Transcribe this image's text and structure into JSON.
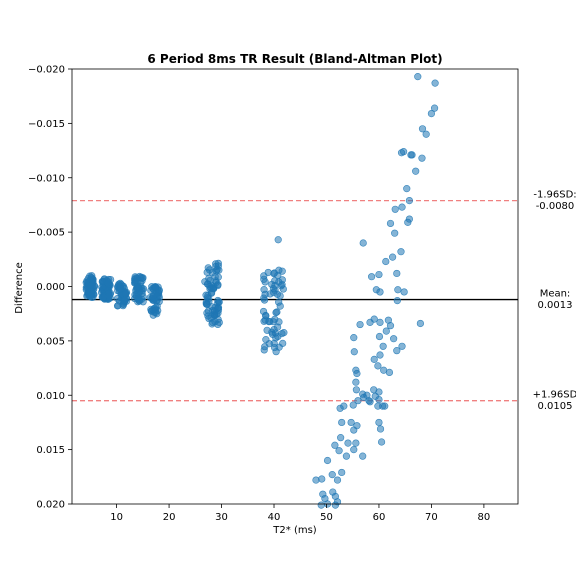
{
  "chart_data": {
    "type": "scatter",
    "title": "6 Period 8ms TR Result (Bland-Altman Plot)",
    "xlabel": "T2* (ms)",
    "ylabel": "Difference",
    "xlim": [
      1.5,
      86.5
    ],
    "ylim": [
      0.02,
      -0.02
    ],
    "y_axis_inverted": true,
    "xticks": [
      10,
      20,
      30,
      40,
      50,
      60,
      70,
      80
    ],
    "xtick_labels": [
      "10",
      "20",
      "30",
      "40",
      "50",
      "60",
      "70",
      "80"
    ],
    "yticks": [
      -0.02,
      -0.015,
      -0.01,
      -0.005,
      0.0,
      0.005,
      0.01,
      0.015,
      0.02
    ],
    "ytick_labels": [
      "−0.020",
      "−0.015",
      "−0.010",
      "−0.005",
      "0.000",
      "0.005",
      "0.010",
      "0.015",
      "0.020"
    ],
    "grid": false,
    "marker_color": "#1f77b4",
    "marker_alpha": 0.55,
    "mean_line": {
      "value": 0.0012,
      "color": "#000000"
    },
    "limit_lines": [
      {
        "value": -0.0079,
        "color": "#f08080"
      },
      {
        "value": 0.0105,
        "color": "#f08080"
      }
    ],
    "annotations": [
      {
        "text": "-1.96SD:\n-0.0080",
        "at": -0.0079
      },
      {
        "text": "Mean:\n0.0013",
        "at": 0.0012
      },
      {
        "text": "+1.96SD\n0.0105",
        "at": 0.0105
      }
    ],
    "clusters": [
      {
        "x_center": 5.0,
        "x_spread": 0.8,
        "y_min": -0.001,
        "y_max": 0.001,
        "count": 60
      },
      {
        "x_center": 8.0,
        "x_spread": 0.9,
        "y_min": -0.0007,
        "y_max": 0.0012,
        "count": 70
      },
      {
        "x_center": 11.0,
        "x_spread": 0.9,
        "y_min": -0.0003,
        "y_max": 0.0018,
        "count": 45
      },
      {
        "x_center": 14.3,
        "x_spread": 0.9,
        "y_min": -0.001,
        "y_max": 0.0015,
        "count": 45
      },
      {
        "x_center": 17.3,
        "x_spread": 0.9,
        "y_min": 0.0,
        "y_max": 0.0027,
        "count": 45
      },
      {
        "x_center": 28.2,
        "x_spread": 1.4,
        "y_min": -0.0022,
        "y_max": 0.0035,
        "count": 70
      },
      {
        "x_center": 40.0,
        "x_spread": 2.0,
        "y_min": -0.0015,
        "y_max": 0.0065,
        "count": 60
      }
    ],
    "points": [
      [
        40.8,
        -0.0043
      ],
      [
        57.0,
        -0.004
      ],
      [
        58.6,
        -0.0009
      ],
      [
        60.0,
        -0.0011
      ],
      [
        59.5,
        0.0003
      ],
      [
        60.2,
        0.0005
      ],
      [
        61.3,
        -0.0023
      ],
      [
        62.2,
        -0.0058
      ],
      [
        62.6,
        -0.0027
      ],
      [
        63.0,
        -0.0049
      ],
      [
        63.1,
        -0.0071
      ],
      [
        63.4,
        -0.0012
      ],
      [
        63.5,
        0.0013
      ],
      [
        63.6,
        0.0003
      ],
      [
        64.2,
        -0.0032
      ],
      [
        64.8,
        0.0005
      ],
      [
        64.4,
        -0.0073
      ],
      [
        65.3,
        -0.009
      ],
      [
        65.8,
        -0.0079
      ],
      [
        65.5,
        -0.0059
      ],
      [
        65.8,
        -0.0062
      ],
      [
        66.1,
        -0.0121
      ],
      [
        64.3,
        -0.0123
      ],
      [
        64.7,
        -0.0124
      ],
      [
        66.3,
        -0.0121
      ],
      [
        67.0,
        -0.0106
      ],
      [
        68.2,
        -0.0118
      ],
      [
        67.4,
        -0.0193
      ],
      [
        68.3,
        -0.0145
      ],
      [
        69.0,
        -0.014
      ],
      [
        70.0,
        -0.0159
      ],
      [
        70.6,
        -0.0164
      ],
      [
        70.7,
        -0.0187
      ],
      [
        67.9,
        0.0034
      ],
      [
        55.2,
        0.0047
      ],
      [
        56.4,
        0.0035
      ],
      [
        58.3,
        0.0033
      ],
      [
        59.1,
        0.003
      ],
      [
        60.2,
        0.0033
      ],
      [
        60.8,
        0.0055
      ],
      [
        61.4,
        0.0041
      ],
      [
        61.8,
        0.0031
      ],
      [
        62.2,
        0.0036
      ],
      [
        62.8,
        0.0048
      ],
      [
        63.4,
        0.0059
      ],
      [
        64.4,
        0.0055
      ],
      [
        60.1,
        0.0046
      ],
      [
        55.3,
        0.006
      ],
      [
        59.1,
        0.0067
      ],
      [
        59.8,
        0.0073
      ],
      [
        60.0,
        0.0097
      ],
      [
        60.2,
        0.0063
      ],
      [
        60.9,
        0.0077
      ],
      [
        62.0,
        0.0079
      ],
      [
        55.6,
        0.0077
      ],
      [
        55.8,
        0.008
      ],
      [
        55.6,
        0.0088
      ],
      [
        55.7,
        0.0095
      ],
      [
        56.0,
        0.0105
      ],
      [
        56.9,
        0.0099
      ],
      [
        57.1,
        0.0102
      ],
      [
        57.7,
        0.01
      ],
      [
        58.1,
        0.0105
      ],
      [
        58.3,
        0.0106
      ],
      [
        59.0,
        0.0095
      ],
      [
        59.3,
        0.0101
      ],
      [
        59.8,
        0.011
      ],
      [
        60.0,
        0.0104
      ],
      [
        60.7,
        0.011
      ],
      [
        61.1,
        0.011
      ],
      [
        55.1,
        0.0109
      ],
      [
        53.3,
        0.011
      ],
      [
        52.6,
        0.0112
      ],
      [
        54.7,
        0.0125
      ],
      [
        55.8,
        0.0128
      ],
      [
        55.2,
        0.0132
      ],
      [
        52.9,
        0.0125
      ],
      [
        60.0,
        0.0125
      ],
      [
        60.3,
        0.0131
      ],
      [
        60.5,
        0.0143
      ],
      [
        52.7,
        0.0139
      ],
      [
        54.1,
        0.0144
      ],
      [
        55.6,
        0.0144
      ],
      [
        51.6,
        0.0146
      ],
      [
        52.4,
        0.0151
      ],
      [
        53.8,
        0.0156
      ],
      [
        55.2,
        0.015
      ],
      [
        56.9,
        0.0156
      ],
      [
        50.2,
        0.016
      ],
      [
        52.9,
        0.0171
      ],
      [
        51.1,
        0.0173
      ],
      [
        48.0,
        0.0178
      ],
      [
        49.1,
        0.0177
      ],
      [
        52.1,
        0.0178
      ],
      [
        51.2,
        0.0189
      ],
      [
        49.3,
        0.0191
      ],
      [
        49.7,
        0.0195
      ],
      [
        51.7,
        0.0193
      ],
      [
        52.1,
        0.0198
      ],
      [
        51.7,
        0.0201
      ],
      [
        49.0,
        0.0201
      ],
      [
        50.2,
        0.02
      ]
    ]
  }
}
